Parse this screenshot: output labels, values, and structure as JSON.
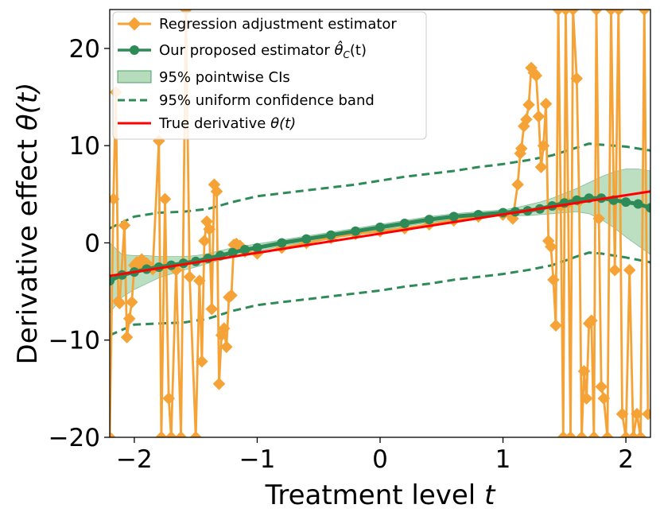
{
  "chart_data": {
    "type": "line",
    "xlabel": "Treatment level",
    "xlabel_var": "t",
    "ylabel": "Derivative effect",
    "ylabel_var": "θ(t)",
    "xlim": [
      -2.2,
      2.2
    ],
    "ylim": [
      -20,
      24
    ],
    "xticks": [
      -2,
      -1,
      0,
      1,
      2
    ],
    "xtick_labels": [
      "−2",
      "−1",
      "0",
      "1",
      "2"
    ],
    "yticks": [
      -20,
      -10,
      0,
      10,
      20
    ],
    "ytick_labels": [
      "−20",
      "−10",
      "0",
      "10",
      "20"
    ],
    "grid": false,
    "legend_position": "top-left",
    "legend": {
      "regression": "Regression adjustment estimator",
      "proposed": "Our proposed estimator",
      "proposed_math": "θ̂",
      "proposed_sub": "C",
      "proposed_arg": "(t)",
      "pointwise": "95% pointwise CIs",
      "uniform": "95% uniform confidence band",
      "true_deriv": "True derivative",
      "true_math": "θ(t)"
    },
    "colors": {
      "regression": "#f5a236",
      "proposed": "#2e8b57",
      "band_fill": "#9fd0a6",
      "uniform": "#2e8b57",
      "true_deriv": "#ff0000"
    },
    "series": [
      {
        "key": "regression",
        "x": [
          -2.2,
          -2.17,
          -2.15,
          -2.13,
          -2.12,
          -2.08,
          -2.06,
          -2.04,
          -2.02,
          -2.0,
          -1.98,
          -1.96,
          -1.94,
          -1.9,
          -1.85,
          -1.8,
          -1.78,
          -1.75,
          -1.72,
          -1.7,
          -1.66,
          -1.62,
          -1.58,
          -1.55,
          -1.5,
          -1.47,
          -1.45,
          -1.43,
          -1.41,
          -1.39,
          -1.37,
          -1.35,
          -1.33,
          -1.31,
          -1.29,
          -1.27,
          -1.25,
          -1.23,
          -1.21,
          -1.19,
          -1.17,
          -1.14,
          -1.1,
          -1.0,
          -0.8,
          -0.6,
          -0.4,
          -0.2,
          0.0,
          0.2,
          0.4,
          0.6,
          0.8,
          1.0,
          1.08,
          1.12,
          1.14,
          1.15,
          1.17,
          1.19,
          1.21,
          1.23,
          1.25,
          1.27,
          1.29,
          1.31,
          1.33,
          1.35,
          1.37,
          1.39,
          1.41,
          1.43,
          1.45,
          1.47,
          1.49,
          1.51,
          1.53,
          1.55,
          1.57,
          1.6,
          1.62,
          1.64,
          1.66,
          1.68,
          1.7,
          1.72,
          1.74,
          1.76,
          1.78,
          1.8,
          1.82,
          1.85,
          1.88,
          1.91,
          1.94,
          1.97,
          2.0,
          2.03,
          2.06,
          2.09,
          2.12,
          2.15,
          2.18
        ],
        "y": [
          -20,
          4.5,
          15.5,
          -6,
          -6.2,
          1.8,
          -9.7,
          -7.8,
          -6.1,
          -2.3,
          -2.0,
          -2.5,
          -1.7,
          -2.1,
          -2.7,
          10.5,
          -20,
          4.5,
          -16,
          -20,
          -2.8,
          -20,
          24,
          -3.5,
          -20,
          -3.9,
          -12.2,
          0.2,
          2.2,
          1.4,
          -6.8,
          6.0,
          5.3,
          -14.5,
          -9.5,
          -8.8,
          -10.7,
          -5.6,
          -5.4,
          -0.2,
          -0.1,
          -0.3,
          -0.9,
          -1.1,
          -0.5,
          0.0,
          0.5,
          0.9,
          1.2,
          1.5,
          1.9,
          2.3,
          2.7,
          2.9,
          2.5,
          6.0,
          9.2,
          9.7,
          12.0,
          12.7,
          14.2,
          18.0,
          17.5,
          17.2,
          13.0,
          7.8,
          10.0,
          14.3,
          0.2,
          -0.4,
          -3.8,
          -8.5,
          24,
          3.8,
          -20,
          24,
          4.1,
          -20,
          24,
          16.9,
          4.3,
          -20,
          -13.2,
          -16.0,
          -8.3,
          -8.0,
          -20,
          24,
          2.5,
          -14.8,
          -16.0,
          -20,
          24,
          -2.8,
          24,
          -17.6,
          -20,
          -2.8,
          -20,
          -17.6,
          -20,
          24,
          -17.6
        ]
      },
      {
        "key": "proposed",
        "x": [
          -2.2,
          -2.1,
          -2.0,
          -1.9,
          -1.8,
          -1.7,
          -1.6,
          -1.5,
          -1.4,
          -1.3,
          -1.2,
          -1.1,
          -1.0,
          -0.8,
          -0.6,
          -0.4,
          -0.2,
          0.0,
          0.2,
          0.4,
          0.6,
          0.8,
          1.0,
          1.1,
          1.2,
          1.3,
          1.4,
          1.5,
          1.6,
          1.7,
          1.8,
          1.9,
          2.0,
          2.1,
          2.2
        ],
        "y": [
          -3.9,
          -3.3,
          -3.0,
          -2.7,
          -2.5,
          -2.3,
          -2.1,
          -1.9,
          -1.6,
          -1.3,
          -1.0,
          -0.7,
          -0.5,
          0.0,
          0.4,
          0.8,
          1.2,
          1.6,
          2.0,
          2.4,
          2.7,
          2.9,
          3.1,
          3.2,
          3.3,
          3.5,
          3.8,
          4.1,
          4.4,
          4.6,
          4.6,
          4.4,
          4.2,
          4.0,
          3.6
        ]
      },
      {
        "key": "true_deriv",
        "x": [
          -2.2,
          2.2
        ],
        "y": [
          -3.4,
          5.3
        ]
      },
      {
        "key": "pointwise",
        "x": [
          -2.2,
          -2.1,
          -2.0,
          -1.9,
          -1.8,
          -1.7,
          -1.6,
          -1.5,
          -1.4,
          -1.3,
          -1.2,
          -1.1,
          -1.0,
          -0.8,
          -0.6,
          -0.4,
          -0.2,
          0.0,
          0.2,
          0.4,
          0.6,
          0.8,
          1.0,
          1.1,
          1.2,
          1.3,
          1.4,
          1.5,
          1.6,
          1.7,
          1.8,
          1.9,
          2.0,
          2.1,
          2.2
        ],
        "lower": [
          -7.2,
          -5.6,
          -4.8,
          -4.2,
          -3.6,
          -3.2,
          -2.8,
          -2.5,
          -2.1,
          -1.8,
          -1.5,
          -1.1,
          -0.9,
          -0.3,
          0.1,
          0.5,
          0.9,
          1.3,
          1.7,
          2.1,
          2.4,
          2.6,
          2.8,
          2.8,
          2.8,
          2.9,
          3.0,
          3.1,
          3.2,
          3.0,
          2.4,
          1.6,
          0.6,
          -0.3,
          -1.2
        ],
        "upper": [
          0.0,
          -1.2,
          -1.3,
          -1.3,
          -1.4,
          -1.4,
          -1.4,
          -1.3,
          -1.1,
          -0.8,
          -0.5,
          -0.3,
          -0.1,
          0.3,
          0.7,
          1.1,
          1.5,
          1.9,
          2.3,
          2.7,
          3.0,
          3.2,
          3.4,
          3.6,
          3.9,
          4.2,
          4.6,
          5.1,
          5.6,
          6.2,
          6.8,
          7.3,
          7.6,
          7.6,
          7.4
        ]
      },
      {
        "key": "uniform_upper",
        "x": [
          -2.2,
          -2.0,
          -1.8,
          -1.6,
          -1.4,
          -1.2,
          -1.0,
          -0.8,
          -0.6,
          -0.4,
          -0.2,
          0.0,
          0.2,
          0.4,
          0.6,
          0.8,
          1.0,
          1.2,
          1.4,
          1.6,
          1.7,
          1.8,
          2.0,
          2.2
        ],
        "y": [
          1.5,
          2.7,
          3.1,
          3.2,
          3.5,
          4.2,
          4.8,
          5.1,
          5.4,
          5.7,
          6.0,
          6.4,
          6.8,
          7.1,
          7.4,
          7.8,
          8.1,
          8.5,
          9.0,
          9.8,
          10.2,
          10.1,
          9.9,
          9.5
        ]
      },
      {
        "key": "uniform_lower",
        "x": [
          -2.2,
          -2.0,
          -1.8,
          -1.6,
          -1.4,
          -1.2,
          -1.0,
          -0.8,
          -0.6,
          -0.4,
          -0.2,
          0.0,
          0.2,
          0.4,
          0.6,
          0.8,
          1.0,
          1.2,
          1.4,
          1.6,
          1.7,
          1.8,
          2.0,
          2.2
        ],
        "y": [
          -9.5,
          -8.4,
          -8.3,
          -8.2,
          -7.8,
          -7.0,
          -6.4,
          -6.1,
          -5.8,
          -5.5,
          -5.2,
          -4.9,
          -4.5,
          -4.2,
          -3.8,
          -3.5,
          -3.2,
          -2.8,
          -2.3,
          -1.4,
          -1.0,
          -1.1,
          -1.5,
          -2.0
        ]
      }
    ]
  }
}
